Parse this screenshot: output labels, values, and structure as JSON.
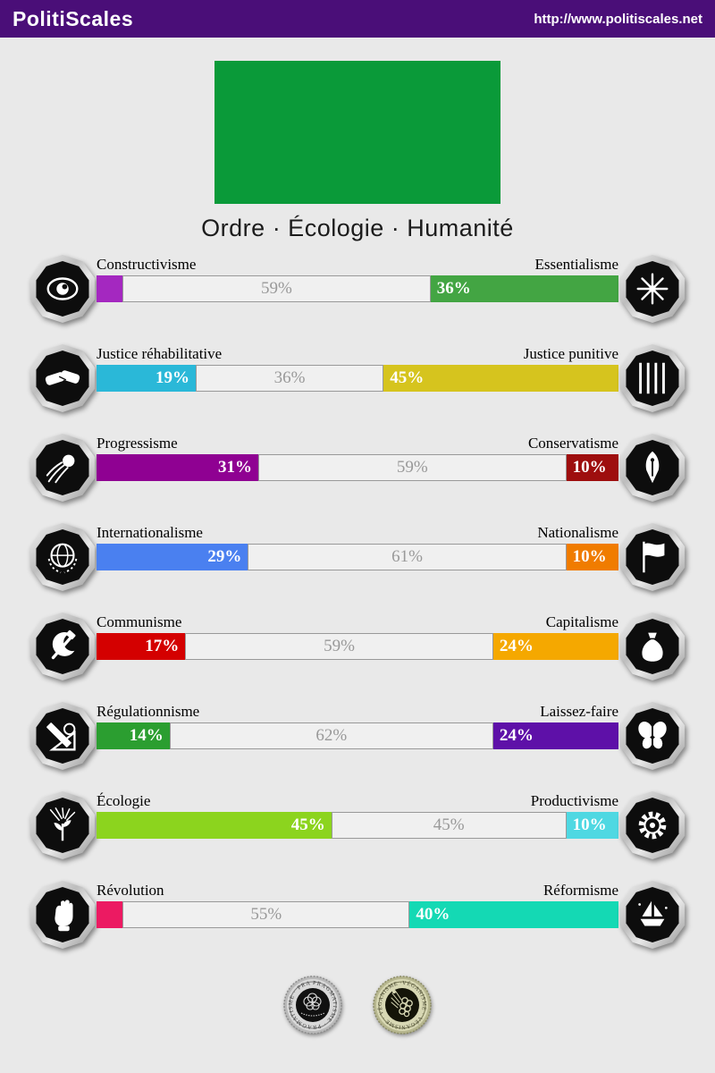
{
  "header": {
    "brand": "PolitiScales",
    "url": "http://www.politiscales.net",
    "bg_color": "#4a0e78"
  },
  "flag": {
    "color": "#0a9a39"
  },
  "title": "Ordre · Écologie · Humanité",
  "bar_style": {
    "middle_bg": "#f0f0f0",
    "middle_border": "#999999",
    "middle_text_color": "#999999"
  },
  "axes": [
    {
      "left_label": "Constructivisme",
      "right_label": "Essentialisme",
      "left_icon": "eye-icon",
      "right_icon": "dandelion-icon",
      "left": {
        "pct": 5,
        "label": "",
        "color": "#a428c0"
      },
      "middle": {
        "pct": 59,
        "label": "59%"
      },
      "right": {
        "pct": 36,
        "label": "36%",
        "color": "#43a543"
      }
    },
    {
      "left_label": "Justice réhabilitative",
      "right_label": "Justice punitive",
      "left_icon": "handshake-icon",
      "right_icon": "prison-bars-icon",
      "left": {
        "pct": 19,
        "label": "19%",
        "color": "#2ab8d8"
      },
      "middle": {
        "pct": 36,
        "label": "36%"
      },
      "right": {
        "pct": 45,
        "label": "45%",
        "color": "#d6c41e"
      }
    },
    {
      "left_label": "Progressisme",
      "right_label": "Conservatisme",
      "left_icon": "comet-icon",
      "right_icon": "pen-icon",
      "left": {
        "pct": 31,
        "label": "31%",
        "color": "#8f0192"
      },
      "middle": {
        "pct": 59,
        "label": "59%"
      },
      "right": {
        "pct": 10,
        "label": "10%",
        "color": "#9e0e0e"
      }
    },
    {
      "left_label": "Internationalisme",
      "right_label": "Nationalisme",
      "left_icon": "globe-icon",
      "right_icon": "flag-icon",
      "left": {
        "pct": 29,
        "label": "29%",
        "color": "#4a80f0"
      },
      "middle": {
        "pct": 61,
        "label": "61%"
      },
      "right": {
        "pct": 10,
        "label": "10%",
        "color": "#f07c00"
      }
    },
    {
      "left_label": "Communisme",
      "right_label": "Capitalisme",
      "left_icon": "hammer-sickle-icon",
      "right_icon": "money-bag-icon",
      "left": {
        "pct": 17,
        "label": "17%",
        "color": "#d40000"
      },
      "middle": {
        "pct": 59,
        "label": "59%"
      },
      "right": {
        "pct": 24,
        "label": "24%",
        "color": "#f5a800"
      }
    },
    {
      "left_label": "Régulationnisme",
      "right_label": "Laissez-faire",
      "left_icon": "ruler-triangle-icon",
      "right_icon": "butterfly-icon",
      "left": {
        "pct": 14,
        "label": "14%",
        "color": "#2b9e30"
      },
      "middle": {
        "pct": 62,
        "label": "62%"
      },
      "right": {
        "pct": 24,
        "label": "24%",
        "color": "#5e10a8"
      }
    },
    {
      "left_label": "Écologie",
      "right_label": "Productivisme",
      "left_icon": "plant-icon",
      "right_icon": "gear-icon",
      "left": {
        "pct": 45,
        "label": "45%",
        "color": "#8cd41e"
      },
      "middle": {
        "pct": 45,
        "label": "45%"
      },
      "right": {
        "pct": 10,
        "label": "10%",
        "color": "#4fd8e2"
      }
    },
    {
      "left_label": "Révolution",
      "right_label": "Réformisme",
      "left_icon": "fist-icon",
      "right_icon": "sailboat-icon",
      "left": {
        "pct": 5,
        "label": "",
        "color": "#ec1a62"
      },
      "middle": {
        "pct": 55,
        "label": "55%"
      },
      "right": {
        "pct": 40,
        "label": "40%",
        "color": "#14d9b4"
      }
    }
  ],
  "footer_badges": [
    {
      "name": "pragmatisme-coin",
      "ring_text": "PRAGMATISME · PRAGMATISME · PRAGMATISME ·"
    },
    {
      "name": "veganisme-coin",
      "ring_text": "VÉGANISME · VÉGANISME · VÉGANISME · VÉGANISME ·"
    }
  ]
}
